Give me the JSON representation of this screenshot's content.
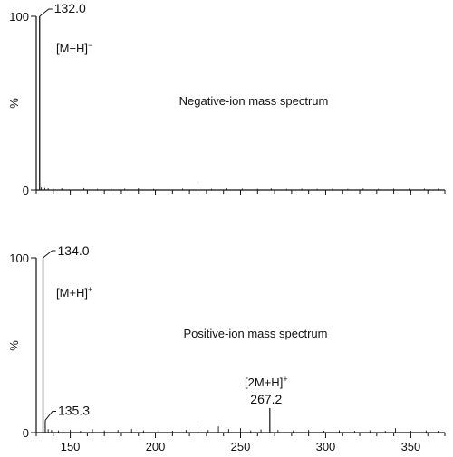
{
  "chart_data": [
    {
      "type": "bar",
      "panel": "negative",
      "title": "Negative-ion mass spectrum",
      "xlabel": "",
      "ylabel": "%",
      "xlim": [
        130,
        370
      ],
      "ylim": [
        0,
        100
      ],
      "y_ticks": [
        "0",
        "100"
      ],
      "show_x_tick_labels": false,
      "grid": false,
      "peaks": [
        {
          "mz": 132.0,
          "intensity": 100,
          "label": "132.0"
        }
      ],
      "minor_peaks": [
        {
          "mz": 133,
          "intensity": 1.5
        },
        {
          "mz": 135,
          "intensity": 1.2
        },
        {
          "mz": 137,
          "intensity": 1.0
        },
        {
          "mz": 140,
          "intensity": 0.8
        },
        {
          "mz": 145,
          "intensity": 1.0
        },
        {
          "mz": 151,
          "intensity": 0.8
        },
        {
          "mz": 158,
          "intensity": 1.1
        },
        {
          "mz": 166,
          "intensity": 0.7
        },
        {
          "mz": 174,
          "intensity": 0.9
        },
        {
          "mz": 182,
          "intensity": 0.8
        },
        {
          "mz": 190,
          "intensity": 1.0
        },
        {
          "mz": 199,
          "intensity": 0.7
        },
        {
          "mz": 208,
          "intensity": 0.9
        },
        {
          "mz": 216,
          "intensity": 0.8
        },
        {
          "mz": 225,
          "intensity": 1.2
        },
        {
          "mz": 233,
          "intensity": 0.7
        },
        {
          "mz": 242,
          "intensity": 0.9
        },
        {
          "mz": 251,
          "intensity": 0.8
        },
        {
          "mz": 260,
          "intensity": 0.7
        },
        {
          "mz": 268,
          "intensity": 0.9
        },
        {
          "mz": 277,
          "intensity": 0.7
        },
        {
          "mz": 286,
          "intensity": 0.8
        },
        {
          "mz": 295,
          "intensity": 0.7
        },
        {
          "mz": 304,
          "intensity": 0.8
        },
        {
          "mz": 313,
          "intensity": 0.7
        },
        {
          "mz": 322,
          "intensity": 0.9
        },
        {
          "mz": 331,
          "intensity": 0.7
        },
        {
          "mz": 340,
          "intensity": 0.8
        },
        {
          "mz": 349,
          "intensity": 0.7
        },
        {
          "mz": 358,
          "intensity": 0.8
        },
        {
          "mz": 366,
          "intensity": 0.7
        }
      ],
      "annotations": [
        {
          "text": "[M−H]",
          "superscript": "−"
        }
      ]
    },
    {
      "type": "bar",
      "panel": "positive",
      "title": "Positive-ion mass spectrum",
      "xlabel": "",
      "ylabel": "%",
      "xlim": [
        130,
        370
      ],
      "ylim": [
        0,
        100
      ],
      "y_ticks": [
        "0",
        "100"
      ],
      "x_ticks": [
        150,
        200,
        250,
        300,
        350
      ],
      "x_tick_labels": [
        "150",
        "200",
        "250",
        "300",
        "350"
      ],
      "grid": false,
      "peaks": [
        {
          "mz": 134.0,
          "intensity": 100,
          "label": "134.0"
        },
        {
          "mz": 135.3,
          "intensity": 7,
          "label": "135.3"
        },
        {
          "mz": 267.2,
          "intensity": 14,
          "label": "267.2"
        }
      ],
      "minor_peaks": [
        {
          "mz": 137,
          "intensity": 2
        },
        {
          "mz": 139,
          "intensity": 1.5
        },
        {
          "mz": 143,
          "intensity": 1.2
        },
        {
          "mz": 150,
          "intensity": 1.5
        },
        {
          "mz": 156,
          "intensity": 1.0
        },
        {
          "mz": 163,
          "intensity": 2.0
        },
        {
          "mz": 170,
          "intensity": 1.2
        },
        {
          "mz": 178,
          "intensity": 1.5
        },
        {
          "mz": 186,
          "intensity": 2.0
        },
        {
          "mz": 193,
          "intensity": 1.2
        },
        {
          "mz": 202,
          "intensity": 1.5
        },
        {
          "mz": 210,
          "intensity": 1.0
        },
        {
          "mz": 218,
          "intensity": 1.5
        },
        {
          "mz": 225,
          "intensity": 5.5
        },
        {
          "mz": 231,
          "intensity": 1.5
        },
        {
          "mz": 237,
          "intensity": 3.5
        },
        {
          "mz": 243,
          "intensity": 2.0
        },
        {
          "mz": 250,
          "intensity": 2.5
        },
        {
          "mz": 256,
          "intensity": 1.2
        },
        {
          "mz": 262,
          "intensity": 1.8
        },
        {
          "mz": 272,
          "intensity": 1.5
        },
        {
          "mz": 281,
          "intensity": 1.2
        },
        {
          "mz": 290,
          "intensity": 1.5
        },
        {
          "mz": 299,
          "intensity": 1.0
        },
        {
          "mz": 308,
          "intensity": 1.3
        },
        {
          "mz": 317,
          "intensity": 1.0
        },
        {
          "mz": 326,
          "intensity": 1.3
        },
        {
          "mz": 335,
          "intensity": 1.0
        },
        {
          "mz": 341,
          "intensity": 2.5
        },
        {
          "mz": 350,
          "intensity": 1.0
        },
        {
          "mz": 359,
          "intensity": 1.2
        },
        {
          "mz": 366,
          "intensity": 1.0
        }
      ],
      "annotations": [
        {
          "text": "[M+H]",
          "superscript": "+"
        },
        {
          "text": "[2M+H]",
          "superscript": "+"
        }
      ]
    }
  ]
}
